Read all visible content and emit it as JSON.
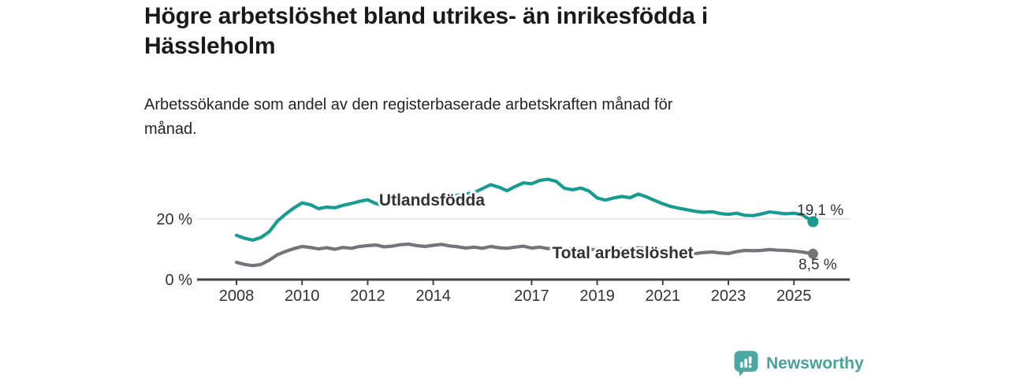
{
  "header": {
    "title": "Högre arbetslöshet bland utrikes- än inrikesfödda i\nHässleholm",
    "subtitle": "Arbetssökande som andel av den registerbaserade arbetskraften månad för\nmånad."
  },
  "branding": {
    "logo_text": "Newsworthy",
    "logo_color": "#4ca8a0",
    "logo_icon": "bar-chart-speech-bubble-icon"
  },
  "chart_data": {
    "type": "line",
    "title": "Högre arbetslöshet bland utrikes- än inrikesfödda i Hässleholm",
    "subtitle": "Arbetssökande som andel av den registerbaserade arbetskraften månad för månad.",
    "grid": "horizontal-20-only",
    "legend_position": "inline-labels-on-lines",
    "xlim": [
      2006.8,
      2026.7
    ],
    "ylim": [
      0,
      40
    ],
    "x_ticks": [
      {
        "x": 2008,
        "label": "2008"
      },
      {
        "x": 2010,
        "label": "2010"
      },
      {
        "x": 2012,
        "label": "2012"
      },
      {
        "x": 2014,
        "label": "2014"
      },
      {
        "x": 2017,
        "label": "2017"
      },
      {
        "x": 2019,
        "label": "2019"
      },
      {
        "x": 2021,
        "label": "2021"
      },
      {
        "x": 2023,
        "label": "2023"
      },
      {
        "x": 2025,
        "label": "2025"
      }
    ],
    "y_ticks": [
      {
        "v": 0,
        "label": "0 %"
      },
      {
        "v": 20,
        "label": "20 %"
      }
    ],
    "x": [
      2008,
      2008.25,
      2008.5,
      2008.75,
      2009,
      2009.25,
      2009.5,
      2009.75,
      2010,
      2010.25,
      2010.5,
      2010.75,
      2011,
      2011.25,
      2011.5,
      2011.75,
      2012,
      2012.25,
      2012.5,
      2012.75,
      2013,
      2013.25,
      2013.5,
      2013.75,
      2014,
      2014.25,
      2014.5,
      2014.75,
      2015,
      2015.25,
      2015.5,
      2015.75,
      2016,
      2016.25,
      2016.5,
      2016.75,
      2017,
      2017.25,
      2017.5,
      2017.75,
      2018,
      2018.25,
      2018.5,
      2018.75,
      2019,
      2019.25,
      2019.5,
      2019.75,
      2020,
      2020.25,
      2020.5,
      2020.75,
      2021,
      2021.25,
      2021.5,
      2021.75,
      2022,
      2022.25,
      2022.5,
      2022.75,
      2023,
      2023.25,
      2023.5,
      2023.75,
      2024,
      2024.25,
      2024.5,
      2024.75,
      2025,
      2025.25,
      2025.58
    ],
    "series": [
      {
        "name": "Utlandsfödda",
        "color": "#189c92",
        "end_label": "19,1 %",
        "end_value": 19.1,
        "values": [
          14.6,
          13.6,
          13.0,
          13.9,
          15.8,
          19.3,
          21.6,
          23.6,
          25.3,
          24.7,
          23.4,
          23.9,
          23.7,
          24.5,
          25.1,
          25.8,
          26.3,
          25.1,
          24.4,
          25.3,
          25.9,
          26.6,
          26.2,
          25.8,
          26.5,
          27.1,
          27.5,
          27.8,
          28.2,
          28.7,
          30.0,
          31.3,
          30.5,
          29.3,
          30.7,
          31.9,
          31.6,
          32.7,
          33.1,
          32.4,
          30.1,
          29.6,
          30.2,
          29.2,
          26.9,
          26.2,
          26.9,
          27.4,
          27.0,
          28.2,
          27.3,
          26.1,
          25.0,
          24.1,
          23.5,
          23.0,
          22.5,
          22.2,
          22.4,
          21.8,
          21.5,
          21.9,
          21.2,
          21.1,
          21.6,
          22.3,
          22.0,
          21.7,
          21.9,
          21.4,
          19.1
        ]
      },
      {
        "name": "Total arbetslöshet",
        "color": "#75747a",
        "end_label": "8,5 %",
        "end_value": 8.5,
        "values": [
          5.7,
          5.0,
          4.6,
          5.0,
          6.4,
          8.2,
          9.3,
          10.2,
          10.9,
          10.6,
          10.1,
          10.5,
          10.0,
          10.6,
          10.3,
          10.9,
          11.2,
          11.4,
          10.8,
          11.0,
          11.5,
          11.7,
          11.2,
          10.9,
          11.3,
          11.6,
          11.1,
          10.8,
          10.4,
          10.7,
          10.3,
          10.9,
          10.5,
          10.3,
          10.7,
          11.0,
          10.4,
          10.7,
          10.2,
          10.5,
          10.0,
          10.2,
          9.8,
          10.1,
          9.7,
          9.9,
          9.6,
          10.0,
          9.8,
          10.5,
          10.2,
          9.9,
          9.9,
          9.6,
          9.3,
          9.0,
          8.6,
          8.9,
          9.1,
          8.8,
          8.6,
          9.2,
          9.6,
          9.5,
          9.6,
          9.9,
          9.7,
          9.6,
          9.4,
          9.1,
          8.5
        ]
      }
    ],
    "colors": {
      "gridline": "#dadada",
      "axis_line": "#414145",
      "axis_text": "#323235",
      "value_label_text": "#2f2f33"
    }
  }
}
